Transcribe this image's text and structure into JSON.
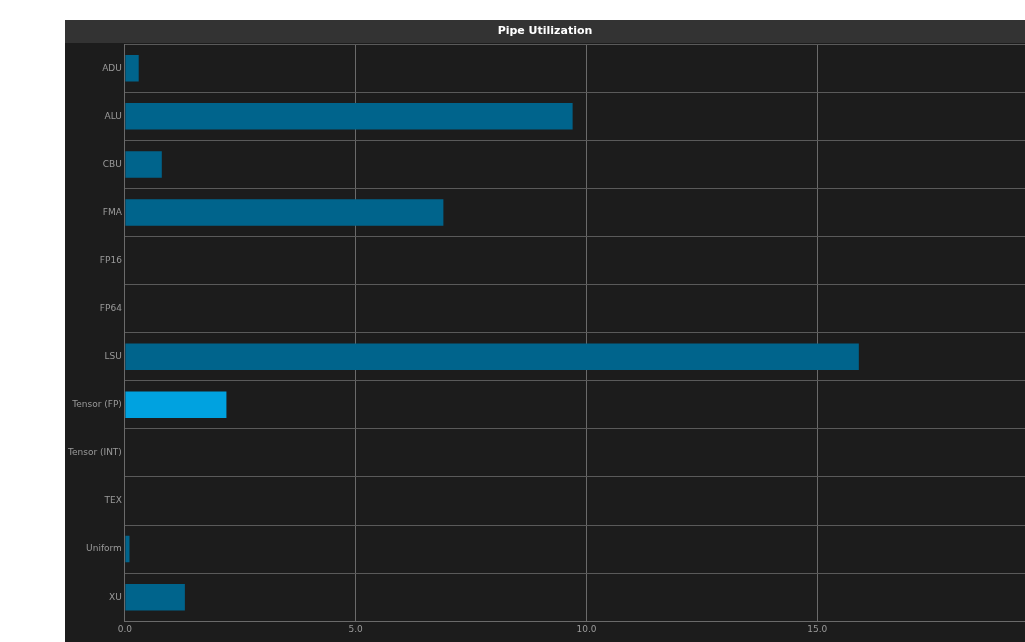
{
  "chart_data": {
    "type": "bar",
    "orientation": "horizontal",
    "title": "Pipe Utilization",
    "categories": [
      "ADU",
      "ALU",
      "CBU",
      "FMA",
      "FP16",
      "FP64",
      "LSU",
      "Tensor (FP)",
      "Tensor (INT)",
      "TEX",
      "Uniform",
      "XU"
    ],
    "values": [
      0.3,
      9.7,
      0.8,
      6.9,
      0,
      0,
      15.9,
      2.2,
      0,
      0,
      0.1,
      1.3
    ],
    "colors": [
      "#00648c",
      "#00648c",
      "#00648c",
      "#00648c",
      "#00648c",
      "#00648c",
      "#00648c",
      "#00a2e0",
      "#00648c",
      "#00648c",
      "#00648c",
      "#00648c"
    ],
    "xlim": [
      0,
      19.5
    ],
    "xticks": [
      {
        "value": 0,
        "label": "0.0"
      },
      {
        "value": 5,
        "label": "5.0"
      },
      {
        "value": 10,
        "label": "10.0"
      },
      {
        "value": 15,
        "label": "15.0"
      }
    ],
    "grid": true
  }
}
